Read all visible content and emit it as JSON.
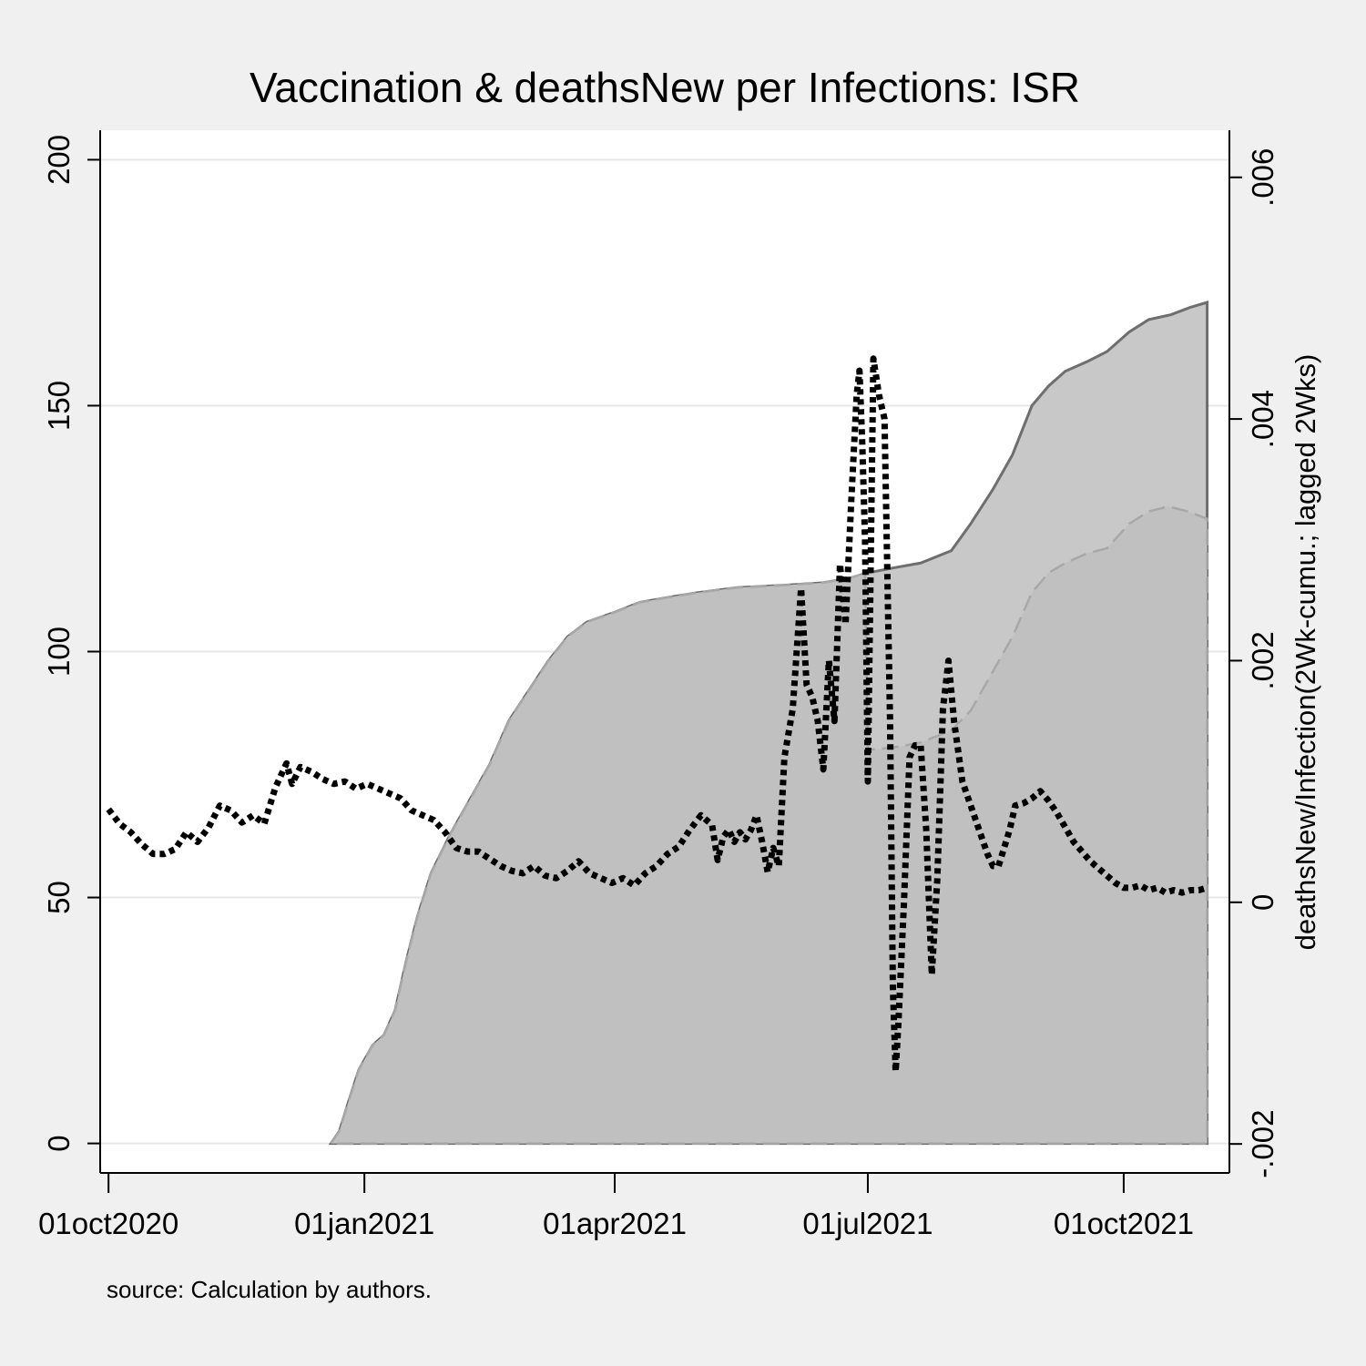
{
  "chart_data": {
    "type": "area",
    "title": "Vaccination & deathsNew per Infections: ISR",
    "note": "source: Calculation by authors.",
    "xlabel": "",
    "ylabel": "",
    "y2label": "deathsNew/Infection(2Wk-cumu.; lagged 2Wks)",
    "xlim": [
      "2020-09-28",
      "2021-11-08"
    ],
    "ylim": [
      -6,
      206
    ],
    "y2lim": [
      -0.00224,
      0.00639
    ],
    "x_ticks": [
      {
        "date": "2020-10-01",
        "label": "01oct2020"
      },
      {
        "date": "2021-01-01",
        "label": "01jan2021"
      },
      {
        "date": "2021-04-01",
        "label": "01apr2021"
      },
      {
        "date": "2021-07-01",
        "label": "01jul2021"
      },
      {
        "date": "2021-10-01",
        "label": "01oct2021"
      }
    ],
    "y_ticks": [
      {
        "value": 0,
        "label": "0"
      },
      {
        "value": 50,
        "label": "50"
      },
      {
        "value": 100,
        "label": "100"
      },
      {
        "value": 150,
        "label": "150"
      },
      {
        "value": 200,
        "label": "200"
      }
    ],
    "y2_ticks": [
      {
        "value": -0.002,
        "label": "-.002"
      },
      {
        "value": 0,
        "label": "0"
      },
      {
        "value": 0.002,
        "label": ".002"
      },
      {
        "value": 0.004,
        "label": ".004"
      },
      {
        "value": 0.006,
        "label": ".006"
      }
    ],
    "grid": true,
    "legend": "none",
    "colors": {
      "background": "#f0f0f0",
      "plot_background": "#ffffff",
      "grid": "#e6e6e6",
      "area_total": "#c8c8c8",
      "area_total_line": "#6e6e6e",
      "area_second": "#c0c0c0",
      "area_second_line": "#a8a8a8",
      "deaths_line": "#000000"
    },
    "series": [
      {
        "axis": "left",
        "kind": "area",
        "style": "solid",
        "points": [
          [
            "2020-12-20",
            0
          ],
          [
            "2020-12-23",
            2.5
          ],
          [
            "2020-12-26",
            8
          ],
          [
            "2020-12-30",
            15
          ],
          [
            "2021-01-04",
            20
          ],
          [
            "2021-01-08",
            22
          ],
          [
            "2021-01-12",
            27
          ],
          [
            "2021-01-16",
            37
          ],
          [
            "2021-01-20",
            46
          ],
          [
            "2021-01-25",
            55
          ],
          [
            "2021-02-01",
            63
          ],
          [
            "2021-02-08",
            70
          ],
          [
            "2021-02-15",
            77
          ],
          [
            "2021-02-22",
            86
          ],
          [
            "2021-03-01",
            92
          ],
          [
            "2021-03-08",
            98
          ],
          [
            "2021-03-15",
            103
          ],
          [
            "2021-03-22",
            106
          ],
          [
            "2021-04-01",
            108
          ],
          [
            "2021-04-10",
            110
          ],
          [
            "2021-04-20",
            111
          ],
          [
            "2021-05-01",
            112
          ],
          [
            "2021-05-15",
            113
          ],
          [
            "2021-06-01",
            113.5
          ],
          [
            "2021-06-15",
            114
          ],
          [
            "2021-06-25",
            115
          ],
          [
            "2021-07-01",
            116
          ],
          [
            "2021-07-10",
            117
          ],
          [
            "2021-07-20",
            118
          ],
          [
            "2021-07-31",
            120.5
          ],
          [
            "2021-08-07",
            126
          ],
          [
            "2021-08-15",
            133
          ],
          [
            "2021-08-22",
            140
          ],
          [
            "2021-08-29",
            150
          ],
          [
            "2021-09-04",
            154
          ],
          [
            "2021-09-10",
            157
          ],
          [
            "2021-09-18",
            159
          ],
          [
            "2021-09-25",
            161
          ],
          [
            "2021-10-03",
            165
          ],
          [
            "2021-10-10",
            167.5
          ],
          [
            "2021-10-18",
            168.5
          ],
          [
            "2021-10-25",
            170
          ],
          [
            "2021-10-31",
            171
          ]
        ]
      },
      {
        "axis": "left",
        "kind": "area",
        "style": "dash",
        "points": [
          [
            "2020-12-20",
            0
          ],
          [
            "2020-12-23",
            2.5
          ],
          [
            "2020-12-26",
            8
          ],
          [
            "2020-12-30",
            15
          ],
          [
            "2021-01-04",
            20
          ],
          [
            "2021-01-08",
            22
          ],
          [
            "2021-01-12",
            27
          ],
          [
            "2021-01-16",
            37
          ],
          [
            "2021-01-20",
            46
          ],
          [
            "2021-01-25",
            55
          ],
          [
            "2021-02-01",
            63
          ],
          [
            "2021-02-08",
            70
          ],
          [
            "2021-02-15",
            77
          ],
          [
            "2021-02-22",
            86
          ],
          [
            "2021-03-01",
            92
          ],
          [
            "2021-03-08",
            98
          ],
          [
            "2021-03-15",
            103
          ],
          [
            "2021-03-22",
            106
          ],
          [
            "2021-04-01",
            108
          ],
          [
            "2021-04-10",
            110
          ],
          [
            "2021-04-20",
            111
          ],
          [
            "2021-05-01",
            112
          ],
          [
            "2021-05-15",
            113
          ],
          [
            "2021-06-01",
            113.5
          ],
          [
            "2021-06-15",
            114
          ],
          [
            "2021-06-25",
            115
          ],
          [
            "2021-06-30",
            116
          ],
          [
            "2021-07-01",
            80
          ],
          [
            "2021-07-10",
            80.5
          ],
          [
            "2021-07-20",
            81.5
          ],
          [
            "2021-07-31",
            84
          ],
          [
            "2021-08-07",
            88
          ],
          [
            "2021-08-15",
            96
          ],
          [
            "2021-08-22",
            103
          ],
          [
            "2021-08-29",
            112
          ],
          [
            "2021-09-04",
            116
          ],
          [
            "2021-09-10",
            118
          ],
          [
            "2021-09-18",
            120
          ],
          [
            "2021-09-25",
            121
          ],
          [
            "2021-10-03",
            126
          ],
          [
            "2021-10-10",
            128.5
          ],
          [
            "2021-10-17",
            129.5
          ],
          [
            "2021-10-24",
            128.5
          ],
          [
            "2021-10-31",
            127
          ]
        ]
      },
      {
        "axis": "right",
        "kind": "line",
        "style": "dot",
        "points": [
          [
            "2020-10-01",
            0.00077
          ],
          [
            "2020-10-05",
            0.00065
          ],
          [
            "2020-10-09",
            0.00058
          ],
          [
            "2020-10-13",
            0.00048
          ],
          [
            "2020-10-17",
            0.0004
          ],
          [
            "2020-10-21",
            0.0004
          ],
          [
            "2020-10-25",
            0.00044
          ],
          [
            "2020-10-29",
            0.00058
          ],
          [
            "2020-11-02",
            0.0005
          ],
          [
            "2020-11-06",
            0.00062
          ],
          [
            "2020-11-10",
            0.0008
          ],
          [
            "2020-11-14",
            0.00076
          ],
          [
            "2020-11-18",
            0.00066
          ],
          [
            "2020-11-22",
            0.00072
          ],
          [
            "2020-11-26",
            0.00065
          ],
          [
            "2020-11-30",
            0.00095
          ],
          [
            "2020-12-04",
            0.00115
          ],
          [
            "2020-12-06",
            0.00098
          ],
          [
            "2020-12-09",
            0.00112
          ],
          [
            "2020-12-13",
            0.00108
          ],
          [
            "2020-12-17",
            0.00102
          ],
          [
            "2020-12-21",
            0.00098
          ],
          [
            "2020-12-25",
            0.001
          ],
          [
            "2020-12-29",
            0.00094
          ],
          [
            "2021-01-02",
            0.00098
          ],
          [
            "2021-01-06",
            0.00094
          ],
          [
            "2021-01-10",
            0.0009
          ],
          [
            "2021-01-14",
            0.00086
          ],
          [
            "2021-01-18",
            0.00076
          ],
          [
            "2021-01-22",
            0.00072
          ],
          [
            "2021-01-26",
            0.00068
          ],
          [
            "2021-01-30",
            0.00058
          ],
          [
            "2021-02-03",
            0.00045
          ],
          [
            "2021-02-07",
            0.00042
          ],
          [
            "2021-02-11",
            0.00042
          ],
          [
            "2021-02-15",
            0.00036
          ],
          [
            "2021-02-19",
            0.0003
          ],
          [
            "2021-02-23",
            0.00026
          ],
          [
            "2021-02-27",
            0.00024
          ],
          [
            "2021-03-03",
            0.0003
          ],
          [
            "2021-03-07",
            0.00022
          ],
          [
            "2021-03-11",
            0.0002
          ],
          [
            "2021-03-15",
            0.00026
          ],
          [
            "2021-03-19",
            0.00034
          ],
          [
            "2021-03-23",
            0.00024
          ],
          [
            "2021-03-27",
            0.0002
          ],
          [
            "2021-03-31",
            0.00016
          ],
          [
            "2021-04-04",
            0.0002
          ],
          [
            "2021-04-08",
            0.00014
          ],
          [
            "2021-04-12",
            0.00024
          ],
          [
            "2021-04-16",
            0.0003
          ],
          [
            "2021-04-20",
            0.0004
          ],
          [
            "2021-04-24",
            0.00046
          ],
          [
            "2021-04-28",
            0.0006
          ],
          [
            "2021-05-02",
            0.00072
          ],
          [
            "2021-05-06",
            0.00064
          ],
          [
            "2021-05-08",
            0.00035
          ],
          [
            "2021-05-10",
            0.00054
          ],
          [
            "2021-05-12",
            0.0006
          ],
          [
            "2021-05-14",
            0.0005
          ],
          [
            "2021-05-16",
            0.00058
          ],
          [
            "2021-05-18",
            0.00052
          ],
          [
            "2021-05-20",
            0.0006
          ],
          [
            "2021-05-22",
            0.00072
          ],
          [
            "2021-05-24",
            0.0005
          ],
          [
            "2021-05-26",
            0.00025
          ],
          [
            "2021-05-28",
            0.00045
          ],
          [
            "2021-05-30",
            0.0003
          ],
          [
            "2021-06-01",
            0.0012
          ],
          [
            "2021-06-04",
            0.0016
          ],
          [
            "2021-06-07",
            0.0026
          ],
          [
            "2021-06-09",
            0.0018
          ],
          [
            "2021-06-11",
            0.0017
          ],
          [
            "2021-06-13",
            0.0015
          ],
          [
            "2021-06-15",
            0.0011
          ],
          [
            "2021-06-17",
            0.002
          ],
          [
            "2021-06-19",
            0.0015
          ],
          [
            "2021-06-21",
            0.0028
          ],
          [
            "2021-06-23",
            0.0023
          ],
          [
            "2021-06-25",
            0.0033
          ],
          [
            "2021-06-27",
            0.0042
          ],
          [
            "2021-06-28",
            0.0044
          ],
          [
            "2021-06-29",
            0.0038
          ],
          [
            "2021-06-30",
            0.003
          ],
          [
            "2021-07-01",
            0.001
          ],
          [
            "2021-07-03",
            0.0045
          ],
          [
            "2021-07-05",
            0.0042
          ],
          [
            "2021-07-07",
            0.004
          ],
          [
            "2021-07-09",
            0.0015
          ],
          [
            "2021-07-10",
            -0.0007
          ],
          [
            "2021-07-11",
            -0.0014
          ],
          [
            "2021-07-12",
            -0.001
          ],
          [
            "2021-07-14",
            0.0
          ],
          [
            "2021-07-16",
            0.0012
          ],
          [
            "2021-07-18",
            0.0013
          ],
          [
            "2021-07-20",
            0.0013
          ],
          [
            "2021-07-22",
            0.0006
          ],
          [
            "2021-07-24",
            -0.0006
          ],
          [
            "2021-07-26",
            0.0002
          ],
          [
            "2021-07-28",
            0.0016
          ],
          [
            "2021-07-30",
            0.002
          ],
          [
            "2021-08-01",
            0.0015
          ],
          [
            "2021-08-04",
            0.001
          ],
          [
            "2021-08-07",
            0.0008
          ],
          [
            "2021-08-10",
            0.0006
          ],
          [
            "2021-08-13",
            0.0004
          ],
          [
            "2021-08-15",
            0.0003
          ],
          [
            "2021-08-17",
            0.0003
          ],
          [
            "2021-08-19",
            0.00045
          ],
          [
            "2021-08-21",
            0.0006
          ],
          [
            "2021-08-23",
            0.0008
          ],
          [
            "2021-08-26",
            0.00082
          ],
          [
            "2021-08-29",
            0.00086
          ],
          [
            "2021-09-01",
            0.00092
          ],
          [
            "2021-09-04",
            0.00084
          ],
          [
            "2021-09-07",
            0.00074
          ],
          [
            "2021-09-10",
            0.00062
          ],
          [
            "2021-09-13",
            0.0005
          ],
          [
            "2021-09-16",
            0.00042
          ],
          [
            "2021-09-19",
            0.00034
          ],
          [
            "2021-09-22",
            0.00028
          ],
          [
            "2021-09-25",
            0.00022
          ],
          [
            "2021-09-28",
            0.00016
          ],
          [
            "2021-10-01",
            0.00012
          ],
          [
            "2021-10-04",
            0.00012
          ],
          [
            "2021-10-07",
            0.00014
          ],
          [
            "2021-10-10",
            0.0001
          ],
          [
            "2021-10-13",
            0.00012
          ],
          [
            "2021-10-16",
            8e-05
          ],
          [
            "2021-10-19",
            0.0001
          ],
          [
            "2021-10-22",
            8e-05
          ],
          [
            "2021-10-25",
            0.0001
          ],
          [
            "2021-10-28",
            0.0001
          ],
          [
            "2021-10-31",
            0.00012
          ]
        ]
      }
    ]
  }
}
